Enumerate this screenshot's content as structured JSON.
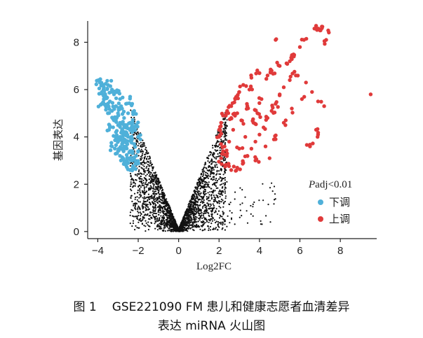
{
  "caption": {
    "figure_number": "图 1",
    "line1": "GSE221090 FM 患儿和健康志愿者血清差异",
    "line2": "表达 miRNA 火山图"
  },
  "chart_data": {
    "type": "scatter",
    "xlabel": "Log2FC",
    "ylabel": "基因表达",
    "xlim": [
      -4.5,
      9.8
    ],
    "ylim": [
      -0.3,
      8.9
    ],
    "xticks": [
      "−4",
      "−2",
      "0",
      "2",
      "4",
      "6",
      "8"
    ],
    "xtick_values": [
      -4,
      -2,
      0,
      2,
      4,
      6,
      8
    ],
    "yticks": [
      "0",
      "2",
      "4",
      "6",
      "8"
    ],
    "ytick_values": [
      0,
      2,
      4,
      6,
      8
    ],
    "grid": false,
    "legend": {
      "title_italic": "P",
      "title_rest": "adj<0.01",
      "placement": "right",
      "items": [
        {
          "label": "下调",
          "color": "#4fb0d9"
        },
        {
          "label": "上调",
          "color": "#e03a3a"
        }
      ]
    },
    "colors": {
      "down": "#4fb0d9",
      "up": "#e03a3a",
      "ns": "#111111"
    },
    "series": [
      {
        "name": "下调",
        "points": [
          [
            -3.9,
            6.3
          ],
          [
            -3.7,
            6.1
          ],
          [
            -3.8,
            5.9
          ],
          [
            -3.5,
            6.2
          ],
          [
            -3.3,
            6.0
          ],
          [
            -3.6,
            5.7
          ],
          [
            -3.4,
            5.5
          ],
          [
            -3.2,
            5.8
          ],
          [
            -3.0,
            5.9
          ],
          [
            -2.9,
            5.6
          ],
          [
            -3.1,
            5.3
          ],
          [
            -3.3,
            5.1
          ],
          [
            -3.5,
            5.0
          ],
          [
            -3.0,
            5.0
          ],
          [
            -2.8,
            5.2
          ],
          [
            -2.6,
            5.4
          ],
          [
            -2.5,
            5.0
          ],
          [
            -2.7,
            4.8
          ],
          [
            -2.9,
            4.6
          ],
          [
            -3.2,
            4.7
          ],
          [
            -3.4,
            4.4
          ],
          [
            -3.1,
            4.2
          ],
          [
            -2.8,
            4.3
          ],
          [
            -2.6,
            4.5
          ],
          [
            -2.4,
            4.6
          ],
          [
            -2.3,
            4.2
          ],
          [
            -2.5,
            4.0
          ],
          [
            -2.7,
            3.9
          ],
          [
            -3.0,
            3.8
          ],
          [
            -3.3,
            3.6
          ],
          [
            -3.0,
            3.4
          ],
          [
            -2.8,
            3.5
          ],
          [
            -2.6,
            3.6
          ],
          [
            -2.4,
            3.4
          ],
          [
            -2.2,
            3.7
          ],
          [
            -2.1,
            3.2
          ],
          [
            -2.3,
            3.0
          ],
          [
            -2.5,
            3.1
          ],
          [
            -2.7,
            3.0
          ],
          [
            -2.9,
            3.2
          ],
          [
            -2.6,
            2.8
          ],
          [
            -2.4,
            2.6
          ],
          [
            -2.2,
            2.7
          ],
          [
            -2.1,
            2.9
          ],
          [
            -2.0,
            3.4
          ],
          [
            -2.0,
            4.0
          ],
          [
            -2.1,
            4.5
          ],
          [
            -2.2,
            5.1
          ],
          [
            -2.3,
            5.4
          ],
          [
            -2.4,
            5.7
          ],
          [
            -3.6,
            5.3
          ],
          [
            -3.7,
            5.6
          ],
          [
            -3.8,
            5.4
          ],
          [
            -2.9,
            4.0
          ],
          [
            -3.1,
            3.9
          ],
          [
            -2.8,
            3.7
          ],
          [
            -2.6,
            4.2
          ],
          [
            -2.3,
            3.9
          ],
          [
            -2.2,
            4.4
          ],
          [
            -2.7,
            4.4
          ]
        ]
      },
      {
        "name": "上调",
        "points": [
          [
            6.8,
            8.7
          ],
          [
            7.0,
            8.5
          ],
          [
            7.4,
            8.5
          ],
          [
            7.3,
            8.1
          ],
          [
            6.2,
            8.1
          ],
          [
            4.8,
            8.1
          ],
          [
            6.0,
            7.8
          ],
          [
            5.7,
            7.4
          ],
          [
            5.5,
            7.2
          ],
          [
            5.0,
            7.0
          ],
          [
            4.6,
            6.8
          ],
          [
            4.4,
            6.6
          ],
          [
            4.0,
            6.7
          ],
          [
            3.6,
            6.5
          ],
          [
            3.2,
            6.2
          ],
          [
            3.5,
            6.0
          ],
          [
            3.0,
            5.9
          ],
          [
            2.8,
            5.6
          ],
          [
            2.6,
            5.3
          ],
          [
            2.4,
            5.1
          ],
          [
            2.2,
            4.9
          ],
          [
            2.1,
            4.6
          ],
          [
            2.0,
            4.3
          ],
          [
            2.0,
            4.0
          ],
          [
            2.1,
            3.7
          ],
          [
            2.2,
            3.4
          ],
          [
            2.1,
            3.1
          ],
          [
            2.3,
            2.8
          ],
          [
            2.6,
            2.6
          ],
          [
            2.9,
            2.7
          ],
          [
            3.2,
            2.9
          ],
          [
            3.4,
            3.2
          ],
          [
            3.6,
            3.5
          ],
          [
            3.8,
            3.8
          ],
          [
            4.0,
            4.1
          ],
          [
            4.2,
            4.4
          ],
          [
            4.4,
            4.8
          ],
          [
            4.6,
            5.1
          ],
          [
            4.8,
            5.4
          ],
          [
            5.0,
            5.8
          ],
          [
            5.2,
            6.1
          ],
          [
            5.5,
            6.4
          ],
          [
            5.8,
            6.6
          ],
          [
            6.3,
            6.3
          ],
          [
            6.6,
            5.9
          ],
          [
            6.9,
            5.5
          ],
          [
            7.2,
            5.3
          ],
          [
            9.5,
            5.8
          ],
          [
            6.8,
            4.3
          ],
          [
            6.9,
            4.1
          ],
          [
            6.5,
            3.6
          ],
          [
            4.5,
            3.1
          ],
          [
            4.8,
            3.9
          ],
          [
            5.2,
            4.6
          ],
          [
            3.0,
            3.5
          ],
          [
            3.3,
            4.0
          ],
          [
            3.7,
            4.6
          ],
          [
            2.7,
            4.3
          ],
          [
            2.5,
            3.8
          ],
          [
            3.1,
            4.7
          ],
          [
            3.4,
            5.3
          ],
          [
            4.1,
            5.6
          ],
          [
            2.9,
            5.0
          ],
          [
            3.8,
            3.0
          ],
          [
            4.3,
            3.6
          ],
          [
            5.6,
            5.2
          ],
          [
            6.1,
            5.6
          ],
          [
            2.4,
            3.3
          ],
          [
            2.6,
            4.8
          ],
          [
            3.9,
            5.0
          ]
        ]
      }
    ]
  }
}
